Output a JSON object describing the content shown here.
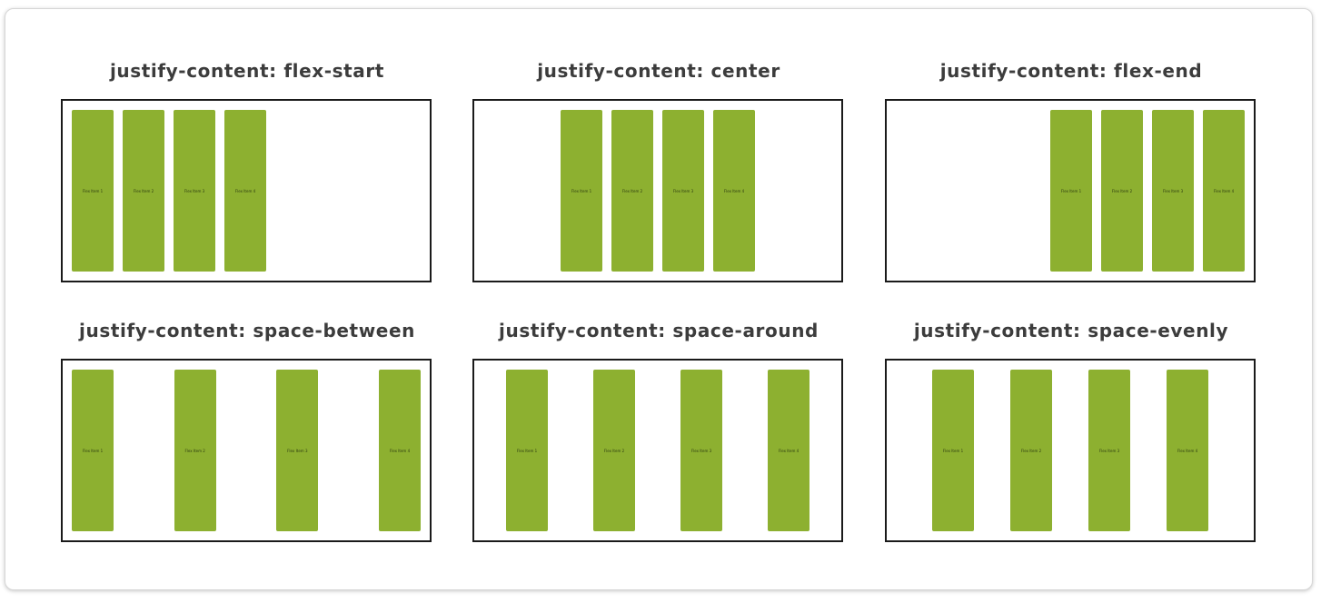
{
  "demos": [
    {
      "title": "justify-content: flex-start",
      "value": "flex-start"
    },
    {
      "title": "justify-content: center",
      "value": "center"
    },
    {
      "title": "justify-content: flex-end",
      "value": "flex-end"
    },
    {
      "title": "justify-content: space-between",
      "value": "space-between"
    },
    {
      "title": "justify-content: space-around",
      "value": "space-around"
    },
    {
      "title": "justify-content: space-evenly",
      "value": "space-evenly"
    }
  ],
  "items": [
    "Flex Item 1",
    "Flex Item 2",
    "Flex Item 3",
    "Flex Item 4"
  ],
  "colors": {
    "item_fill": "#8db030",
    "container_border": "#1a1a1a",
    "title_text": "#3c3c3c"
  }
}
